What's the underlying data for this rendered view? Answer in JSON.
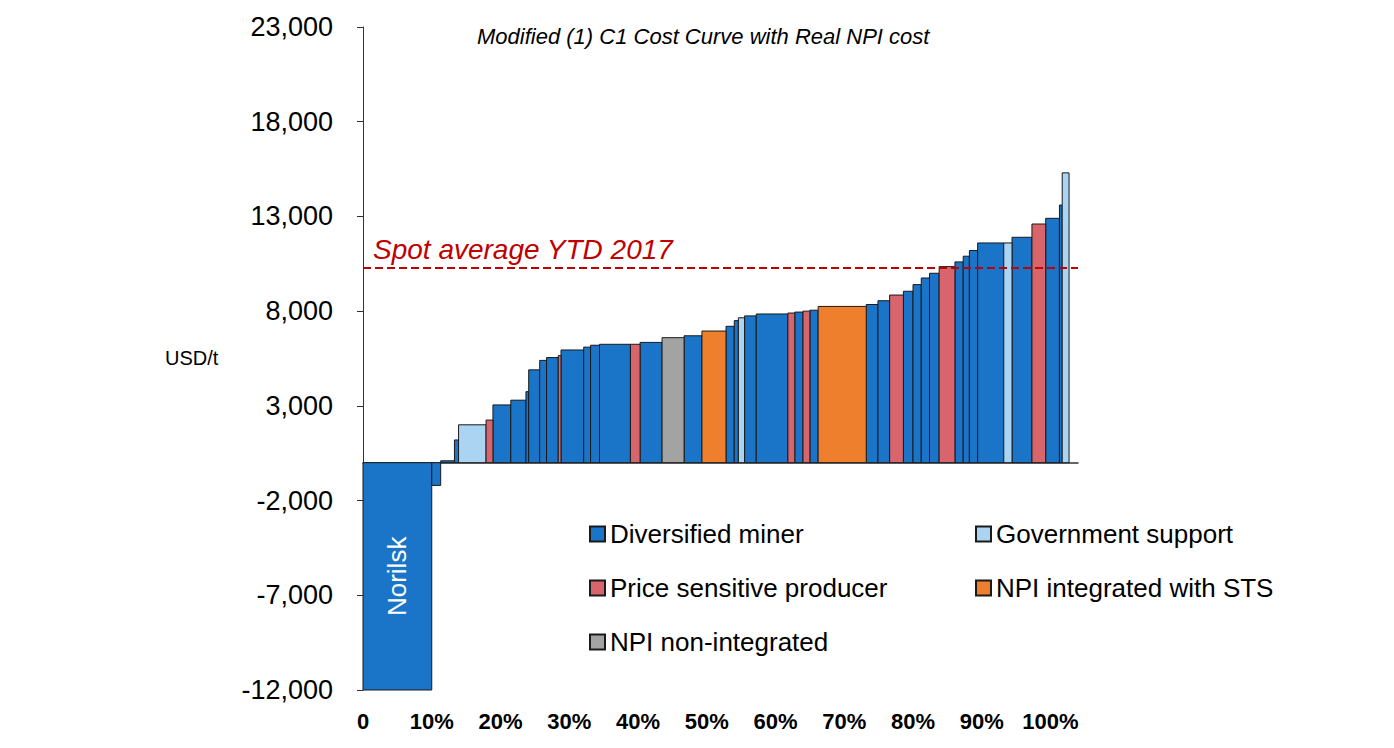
{
  "chart_data": {
    "type": "cost_curve",
    "title": "Modified (1) C1 Cost Curve with Real NPI cost",
    "y_label": "USD/t",
    "xlim": [
      0,
      104
    ],
    "xticks": [
      0,
      {
        "value": 10,
        "label": "10%"
      },
      {
        "value": 20,
        "label": "20%"
      },
      {
        "value": 30,
        "label": "30%"
      },
      {
        "value": 40,
        "label": "40%"
      },
      {
        "value": 50,
        "label": "50%"
      },
      {
        "value": 60,
        "label": "60%"
      },
      {
        "value": 70,
        "label": "70%"
      },
      {
        "value": 80,
        "label": "80%"
      },
      {
        "value": 90,
        "label": "90%"
      },
      {
        "value": 100,
        "label": "100%"
      }
    ],
    "ylim": [
      -12000,
      23000
    ],
    "yticks": [
      {
        "value": -12000,
        "label": "-12,000"
      },
      {
        "value": -7000,
        "label": "-7,000"
      },
      {
        "value": -2000,
        "label": "-2,000"
      },
      {
        "value": 3000,
        "label": "3,000"
      },
      {
        "value": 8000,
        "label": "8,000"
      },
      {
        "value": 13000,
        "label": "13,000"
      },
      {
        "value": 18000,
        "label": "18,000"
      },
      {
        "value": 23000,
        "label": "23,000"
      }
    ],
    "grid": false,
    "legend": "lower right",
    "series": [
      {
        "name": "Diversified miner",
        "color": "#1a75c8"
      },
      {
        "name": "Government support",
        "color": "#aad4f2"
      },
      {
        "name": "Price sensitive producer",
        "color": "#d8646c"
      },
      {
        "name": "NPI integrated with STS",
        "color": "#ee7f2d"
      },
      {
        "name": "NPI non-integrated",
        "color": "#a3a3a3"
      }
    ],
    "segments": [
      {
        "width": 10,
        "value": -12000,
        "group": "Diversified miner",
        "label": "Norilsk"
      },
      {
        "width": 1.3,
        "value": -1200,
        "group": "Diversified miner"
      },
      {
        "width": 2,
        "value": 100,
        "group": "Diversified miner"
      },
      {
        "width": 0.6,
        "value": 1200,
        "group": "Diversified miner"
      },
      {
        "width": 4,
        "value": 2000,
        "group": "Government support"
      },
      {
        "width": 1,
        "value": 2250,
        "group": "Price sensitive producer"
      },
      {
        "width": 2.6,
        "value": 3050,
        "group": "Diversified miner"
      },
      {
        "width": 2.2,
        "value": 3300,
        "group": "Diversified miner"
      },
      {
        "width": 0.4,
        "value": 3750,
        "group": "Diversified miner"
      },
      {
        "width": 1.6,
        "value": 4900,
        "group": "Diversified miner"
      },
      {
        "width": 1,
        "value": 5400,
        "group": "Diversified miner"
      },
      {
        "width": 1.7,
        "value": 5550,
        "group": "Diversified miner"
      },
      {
        "width": 0.4,
        "value": 5650,
        "group": "Price sensitive producer"
      },
      {
        "width": 3.3,
        "value": 5950,
        "group": "Diversified miner"
      },
      {
        "width": 1,
        "value": 6100,
        "group": "Diversified miner"
      },
      {
        "width": 1.3,
        "value": 6200,
        "group": "Diversified miner"
      },
      {
        "width": 4.5,
        "value": 6250,
        "group": "Diversified miner"
      },
      {
        "width": 1.4,
        "value": 6250,
        "group": "Price sensitive producer"
      },
      {
        "width": 3.2,
        "value": 6350,
        "group": "Diversified miner"
      },
      {
        "width": 3.2,
        "value": 6600,
        "group": "NPI non-integrated"
      },
      {
        "width": 2.6,
        "value": 6700,
        "group": "Diversified miner"
      },
      {
        "width": 3.5,
        "value": 6950,
        "group": "NPI integrated with STS"
      },
      {
        "width": 1.2,
        "value": 7200,
        "group": "Diversified miner"
      },
      {
        "width": 0.6,
        "value": 7500,
        "group": "Diversified miner"
      },
      {
        "width": 0.9,
        "value": 7650,
        "group": "Government support"
      },
      {
        "width": 1.7,
        "value": 7750,
        "group": "Diversified miner"
      },
      {
        "width": 4.6,
        "value": 7850,
        "group": "Diversified miner"
      },
      {
        "width": 1,
        "value": 7900,
        "group": "Price sensitive producer"
      },
      {
        "width": 1.2,
        "value": 7950,
        "group": "Diversified miner"
      },
      {
        "width": 1,
        "value": 8000,
        "group": "Price sensitive producer"
      },
      {
        "width": 1.2,
        "value": 8050,
        "group": "Diversified miner"
      },
      {
        "width": 7,
        "value": 8250,
        "group": "NPI integrated with STS"
      },
      {
        "width": 1.7,
        "value": 8350,
        "group": "Diversified miner"
      },
      {
        "width": 1.7,
        "value": 8550,
        "group": "Diversified miner"
      },
      {
        "width": 2,
        "value": 8850,
        "group": "Price sensitive producer"
      },
      {
        "width": 1.4,
        "value": 9050,
        "group": "Diversified miner"
      },
      {
        "width": 1.2,
        "value": 9400,
        "group": "Diversified miner"
      },
      {
        "width": 1.2,
        "value": 9750,
        "group": "Diversified miner"
      },
      {
        "width": 1.4,
        "value": 10000,
        "group": "Diversified miner"
      },
      {
        "width": 2.3,
        "value": 10350,
        "group": "Price sensitive producer"
      },
      {
        "width": 1.2,
        "value": 10600,
        "group": "Diversified miner"
      },
      {
        "width": 0.9,
        "value": 10900,
        "group": "Diversified miner"
      },
      {
        "width": 1.2,
        "value": 11200,
        "group": "Diversified miner"
      },
      {
        "width": 3.8,
        "value": 11600,
        "group": "Diversified miner"
      },
      {
        "width": 1.2,
        "value": 11600,
        "group": "Government support"
      },
      {
        "width": 2.9,
        "value": 11900,
        "group": "Diversified miner"
      },
      {
        "width": 2,
        "value": 12600,
        "group": "Price sensitive producer"
      },
      {
        "width": 2,
        "value": 12900,
        "group": "Diversified miner"
      },
      {
        "width": 0.4,
        "value": 13600,
        "group": "Diversified miner"
      },
      {
        "width": 1,
        "value": 15300,
        "group": "Government support"
      }
    ],
    "reference_line": {
      "value": 10300,
      "label": "Spot average YTD 2017",
      "color": "#c00000",
      "line_style": "dashed"
    }
  }
}
